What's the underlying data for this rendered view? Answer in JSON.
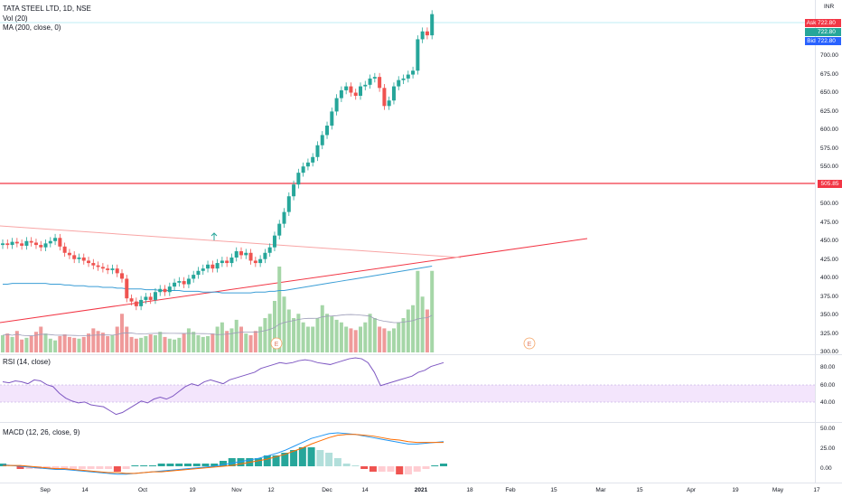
{
  "symbol_line": "TATA STEEL LTD, 1D, NSE",
  "indicators": {
    "volume": "Vol (20)",
    "ma": "MA (200, close, 0)",
    "rsi": "RSI (14, close)",
    "macd": "MACD (12, 26, close, 9)"
  },
  "currency": "INR",
  "price_labels": {
    "ask_key": "Ask",
    "ask_value": "722.80",
    "last_value": "722.80",
    "bid_key": "Bid",
    "bid_value": "722.80",
    "level_value": "505.85"
  },
  "price_axis_ticks": [
    "700.00",
    "675.00",
    "650.00",
    "625.00",
    "600.00",
    "575.00",
    "550.00",
    "525.00",
    "500.00",
    "475.00",
    "450.00",
    "425.00",
    "400.00",
    "375.00",
    "350.00",
    "325.00",
    "300.00"
  ],
  "rsi_axis_ticks": [
    "80.00",
    "60.00",
    "40.00"
  ],
  "macd_axis_ticks": [
    "50.00",
    "25.00",
    "0.00"
  ],
  "time_axis_ticks": [
    "Sep",
    "14",
    "Oct",
    "19",
    "Nov",
    "12",
    "Dec",
    "14",
    "2021",
    "18",
    "Feb",
    "15",
    "Mar",
    "15",
    "Apr",
    "19",
    "May",
    "17"
  ],
  "earnings_marker": "E",
  "colors": {
    "up": "#26a69a",
    "down": "#ef5350",
    "ma_line": "#3b9ed6",
    "level_line": "#f23645",
    "rsi_band": "#f3e5fc",
    "rsi_line": "#7e57c2",
    "macd_line": "#2196f3",
    "signal_line": "#ff6d00"
  },
  "chart_data": {
    "type": "candlestick",
    "title": "TATA STEEL LTD, 1D, NSE",
    "ylim": [
      290,
      740
    ],
    "horizontal_level": 505.85,
    "last_price": 722.8,
    "closes": [
      430,
      428,
      432,
      430,
      427,
      433,
      431,
      428,
      425,
      430,
      433,
      437,
      426,
      418,
      415,
      410,
      412,
      408,
      405,
      402,
      400,
      398,
      396,
      398,
      392,
      385,
      360,
      356,
      350,
      358,
      362,
      358,
      368,
      372,
      368,
      375,
      380,
      382,
      378,
      385,
      390,
      395,
      398,
      403,
      398,
      405,
      408,
      405,
      412,
      420,
      415,
      418,
      408,
      405,
      410,
      418,
      425,
      440,
      455,
      470,
      490,
      505,
      520,
      528,
      533,
      540,
      555,
      568,
      580,
      598,
      615,
      625,
      630,
      622,
      618,
      630,
      632,
      640,
      642,
      628,
      605,
      612,
      630,
      638,
      640,
      645,
      650,
      690,
      700,
      695,
      722
    ],
    "ma_200": [
      378,
      378,
      379,
      379,
      379,
      379,
      379,
      379,
      379,
      379,
      378,
      378,
      378,
      377,
      377,
      376,
      376,
      376,
      375,
      375,
      375,
      374,
      374,
      374,
      373,
      373,
      372,
      372,
      372,
      372,
      371,
      371,
      371,
      370,
      370,
      370,
      370,
      370,
      369,
      369,
      369,
      369,
      368,
      368,
      368,
      368,
      367,
      367,
      367,
      367,
      367,
      367,
      367,
      368,
      368,
      368,
      369,
      369,
      370,
      370,
      371,
      372,
      373,
      374,
      375,
      376,
      377,
      378,
      379,
      380,
      381,
      382,
      383,
      384,
      385,
      386,
      387,
      388,
      389,
      390,
      391,
      392,
      393,
      394,
      395,
      396,
      397,
      398,
      399,
      400,
      401
    ],
    "volume": [
      20,
      22,
      18,
      25,
      15,
      17,
      19,
      24,
      30,
      22,
      16,
      14,
      19,
      21,
      18,
      17,
      16,
      18,
      22,
      28,
      25,
      23,
      19,
      20,
      30,
      45,
      30,
      18,
      16,
      17,
      19,
      21,
      20,
      24,
      18,
      16,
      15,
      17,
      22,
      28,
      24,
      20,
      18,
      19,
      22,
      30,
      35,
      25,
      28,
      38,
      30,
      22,
      20,
      25,
      30,
      40,
      45,
      60,
      100,
      65,
      50,
      40,
      45,
      35,
      30,
      30,
      40,
      55,
      45,
      42,
      38,
      35,
      30,
      28,
      26,
      30,
      35,
      45,
      40,
      30,
      28,
      25,
      28,
      35,
      40,
      50,
      55,
      95,
      65,
      50,
      95
    ],
    "rsi": [
      60,
      59,
      61,
      60,
      58,
      62,
      61,
      57,
      55,
      48,
      43,
      40,
      38,
      39,
      36,
      35,
      34,
      30,
      26,
      28,
      32,
      36,
      40,
      38,
      42,
      44,
      42,
      45,
      50,
      55,
      58,
      56,
      60,
      62,
      60,
      58,
      62,
      64,
      66,
      68,
      70,
      74,
      76,
      78,
      80,
      79,
      80,
      82,
      83,
      82,
      80,
      79,
      78,
      80,
      82,
      84,
      85,
      84,
      80,
      70,
      56,
      58,
      60,
      62,
      64,
      66,
      70,
      72,
      76,
      78,
      80
    ],
    "macd": [
      2,
      1,
      0,
      -1,
      -2,
      -3,
      -4,
      -4,
      -5,
      -6,
      -7,
      -8,
      -9,
      -10,
      -10,
      -9,
      -8,
      -7,
      -6,
      -5,
      -4,
      -3,
      -2,
      -1,
      0,
      2,
      4,
      6,
      8,
      10,
      13,
      16,
      20,
      25,
      30,
      35,
      38,
      41,
      42,
      41,
      40,
      38,
      36,
      34,
      32,
      30,
      28,
      28,
      29,
      30,
      31
    ],
    "signal": [
      1,
      1,
      1,
      0,
      -1,
      -2,
      -3,
      -3,
      -4,
      -5,
      -6,
      -7,
      -8,
      -8,
      -9,
      -9,
      -8,
      -7,
      -7,
      -6,
      -5,
      -4,
      -3,
      -2,
      -1,
      0,
      1,
      3,
      5,
      7,
      9,
      12,
      15,
      19,
      23,
      28,
      32,
      36,
      39,
      40,
      40,
      39,
      38,
      36,
      34,
      33,
      31,
      30,
      30,
      30,
      30
    ]
  }
}
